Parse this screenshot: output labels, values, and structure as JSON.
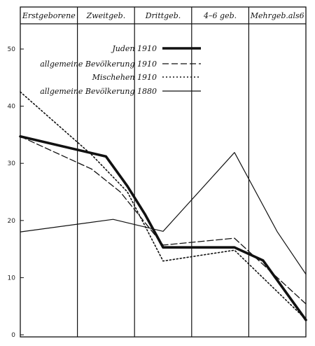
{
  "chart_data": {
    "type": "line",
    "categories": [
      "Erstgeborene",
      "Zweitgeb.",
      "Drittgeb.",
      "4–6 geb.",
      "Mehrgeb.als6"
    ],
    "ylim": [
      0,
      55
    ],
    "yticks": [
      0,
      10,
      20,
      30,
      40,
      50
    ],
    "grid": "vertical category lines",
    "legend_position": "top-center",
    "series": [
      {
        "name": "Juden 1910",
        "style": "thick-solid",
        "points": [
          [
            0.0,
            34.7
          ],
          [
            1.2,
            31.2
          ],
          [
            1.5,
            26
          ],
          [
            1.75,
            21
          ],
          [
            2.0,
            15.3
          ],
          [
            2.5,
            15.3
          ],
          [
            3.0,
            15.3
          ],
          [
            3.4,
            13
          ],
          [
            4.0,
            2.6
          ]
        ]
      },
      {
        "name": "allgemeine Bevölkerung 1910",
        "style": "dashed",
        "points": [
          [
            0.0,
            34.7
          ],
          [
            1.0,
            29
          ],
          [
            1.4,
            25
          ],
          [
            2.0,
            15.7
          ],
          [
            3.0,
            16.9
          ],
          [
            4.0,
            5.4
          ]
        ]
      },
      {
        "name": "Mischehen 1910",
        "style": "dotted",
        "points": [
          [
            0.0,
            42.5
          ],
          [
            1.0,
            31.5
          ],
          [
            1.5,
            25
          ],
          [
            2.0,
            12.9
          ],
          [
            3.0,
            14.8
          ],
          [
            4.0,
            2.7
          ]
        ]
      },
      {
        "name": "allgemeine Bevölkerung 1880",
        "style": "thin-solid",
        "points": [
          [
            0.0,
            18
          ],
          [
            1.3,
            20.2
          ],
          [
            2.0,
            18.1
          ],
          [
            3.0,
            31.9
          ],
          [
            3.6,
            18
          ],
          [
            4.0,
            10.6
          ]
        ]
      }
    ]
  }
}
